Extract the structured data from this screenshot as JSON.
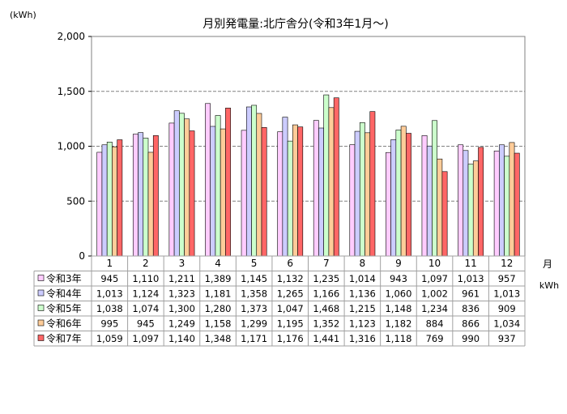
{
  "chart_data": {
    "type": "bar",
    "title": "月別発電量:北庁舎分(令和3年1月～)",
    "ylabel": "(kWh)",
    "xlabel": "月",
    "table_unit": "kWh",
    "ylim": [
      0,
      2000
    ],
    "yticks": [
      "0",
      "500",
      "1,000",
      "1,500",
      "2,000"
    ],
    "grid": true,
    "legend": "table-left",
    "categories": [
      "1",
      "2",
      "3",
      "4",
      "5",
      "6",
      "7",
      "8",
      "9",
      "10",
      "11",
      "12"
    ],
    "series": [
      {
        "name": "令和3年",
        "color": "#ffccff",
        "values": [
          945,
          1110,
          1211,
          1389,
          1145,
          1132,
          1235,
          1014,
          943,
          1097,
          1013,
          957
        ]
      },
      {
        "name": "令和4年",
        "color": "#ccccff",
        "values": [
          1013,
          1124,
          1323,
          1181,
          1358,
          1265,
          1166,
          1136,
          1060,
          1002,
          961,
          1013
        ]
      },
      {
        "name": "令和5年",
        "color": "#ccffcc",
        "values": [
          1038,
          1074,
          1300,
          1280,
          1373,
          1047,
          1468,
          1215,
          1148,
          1234,
          836,
          909
        ]
      },
      {
        "name": "令和6年",
        "color": "#ffcc99",
        "values": [
          995,
          945,
          1249,
          1158,
          1299,
          1195,
          1352,
          1123,
          1182,
          884,
          866,
          1034
        ]
      },
      {
        "name": "令和7年",
        "color": "#ff6666",
        "values": [
          1059,
          1097,
          1140,
          1348,
          1171,
          1176,
          1441,
          1316,
          1118,
          769,
          990,
          937
        ]
      }
    ]
  }
}
